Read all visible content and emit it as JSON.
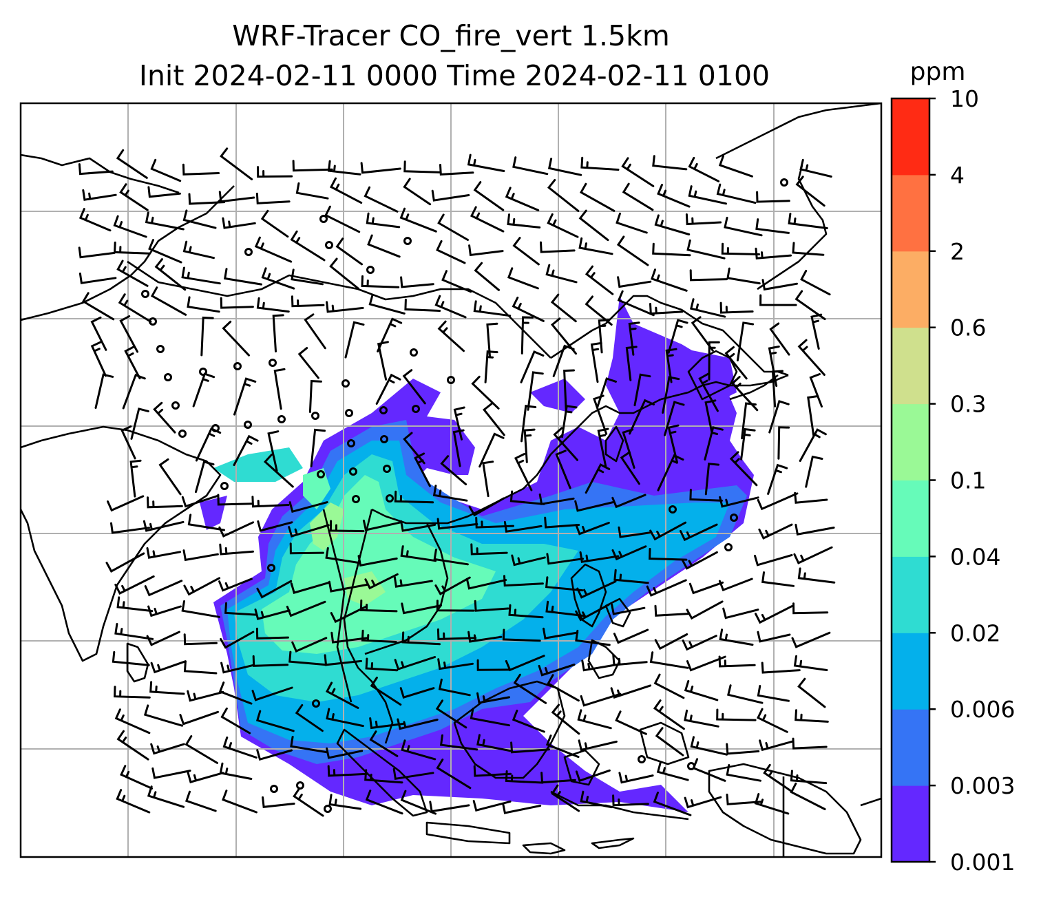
{
  "title_line1": "WRF-Tracer CO_fire_vert 1.5km",
  "title_line2": "Init 2024-02-11 0000 Time 2024-02-11 0100",
  "colorbar": {
    "unit": "ppm",
    "levels": [
      "0.001",
      "0.003",
      "0.006",
      "0.02",
      "0.04",
      "0.1",
      "0.3",
      "0.6",
      "2",
      "4",
      "10"
    ],
    "colors": [
      "#6428ff",
      "#3574f5",
      "#04b0eb",
      "#2fdcd2",
      "#66fbb9",
      "#9af996",
      "#cfe08d",
      "#fcad64",
      "#ff7141",
      "#ff2b14"
    ]
  },
  "map": {
    "gridlines": true,
    "features": [
      "coastlines",
      "country-borders",
      "wind-barbs",
      "co-fire-tracer-shading"
    ]
  }
}
